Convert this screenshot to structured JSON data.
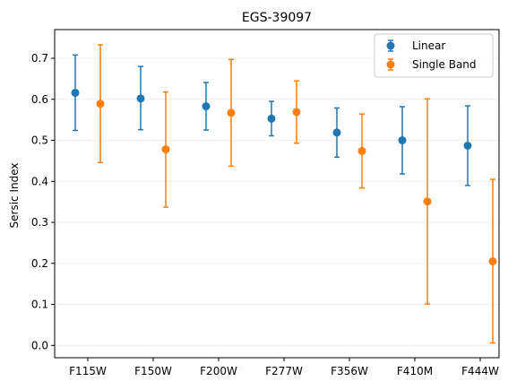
{
  "chart_data": {
    "type": "scatter",
    "title": "EGS-39097",
    "xlabel": "",
    "ylabel": "Sersic Index",
    "categories": [
      "F115W",
      "F150W",
      "F200W",
      "F277W",
      "F356W",
      "F410M",
      "F444W"
    ],
    "ylim": [
      -0.03,
      0.77
    ],
    "yticks": [
      "0.0",
      "0.1",
      "0.2",
      "0.3",
      "0.4",
      "0.5",
      "0.6",
      "0.7"
    ],
    "grid": "horizontal",
    "legend": "top-right",
    "series": [
      {
        "name": "Linear",
        "color": "#1f77b4",
        "values": [
          0.616,
          0.602,
          0.583,
          0.553,
          0.519,
          0.5,
          0.487
        ],
        "lower": [
          0.524,
          0.526,
          0.525,
          0.511,
          0.459,
          0.418,
          0.39
        ],
        "upper": [
          0.708,
          0.68,
          0.641,
          0.595,
          0.579,
          0.582,
          0.584
        ]
      },
      {
        "name": "Single Band",
        "color": "#ff7f0e",
        "values": [
          0.589,
          0.478,
          0.567,
          0.569,
          0.474,
          0.351,
          0.205
        ],
        "lower": [
          0.446,
          0.337,
          0.437,
          0.493,
          0.384,
          0.101,
          0.006
        ],
        "upper": [
          0.733,
          0.618,
          0.697,
          0.645,
          0.564,
          0.601,
          0.405
        ]
      }
    ]
  }
}
